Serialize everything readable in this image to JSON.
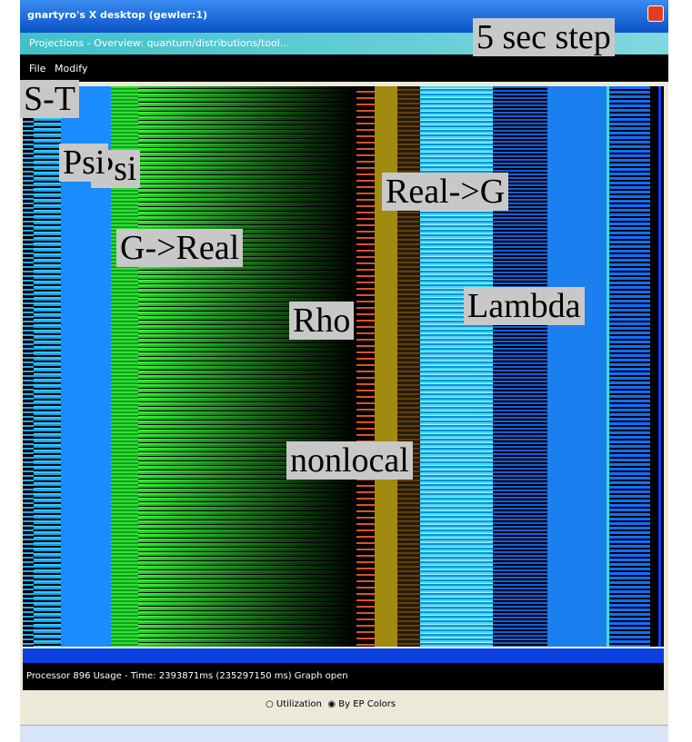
{
  "window": {
    "title": "gnartyro's X desktop (gewler:1)",
    "subtitle": "Projections - Overview: quantum/distributions/tool..."
  },
  "menu": [
    "File",
    "Modify"
  ],
  "annotations": [
    "5 sec step",
    "S-T",
    "Psi",
    "Psi",
    "G->Real",
    "Real->G",
    "Rho",
    "Lambda",
    "nonlocal"
  ],
  "status": "Processor 896 Usage - Time: 2393871ms (235297150 ms) Graph open",
  "options": [
    "Utilization",
    "By EP Colors"
  ]
}
